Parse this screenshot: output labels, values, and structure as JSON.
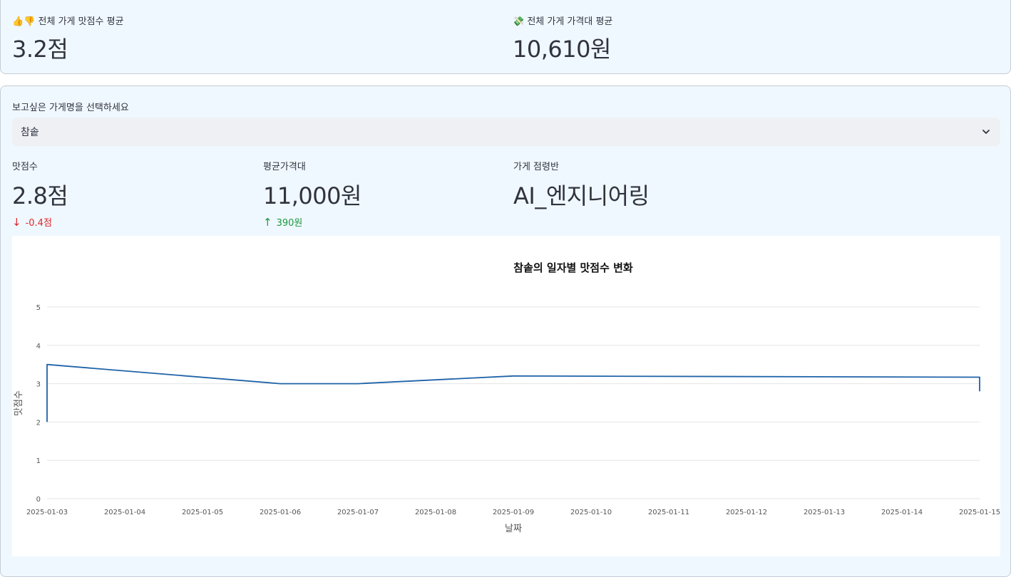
{
  "summary": {
    "avg_taste": {
      "icon": "👍👎",
      "label": "전체 가게 맛점수 평균",
      "value": "3.2점"
    },
    "avg_price": {
      "icon": "💸",
      "label": "전체 가게 가격대 평균",
      "value": "10,610원"
    }
  },
  "selector": {
    "label": "보고싶은 가게명을 선택하세요",
    "selected": "참솥"
  },
  "store_metrics": {
    "taste": {
      "label": "맛점수",
      "value": "2.8점",
      "delta": "-0.4점",
      "direction": "down"
    },
    "price": {
      "label": "평균가격대",
      "value": "11,000원",
      "delta": "390원",
      "direction": "up"
    },
    "owner": {
      "label": "가게 점령반",
      "value": "AI_엔지니어링"
    }
  },
  "colors": {
    "line": "#1f63a8",
    "delta_down": "#e0242c",
    "delta_up": "#1b9740",
    "panel_bg": "#f0f8ff"
  },
  "chart_data": {
    "type": "line",
    "title": "참솥의 일자별 맛점수 변화",
    "xlabel": "날짜",
    "ylabel": "맛점수",
    "ylim": [
      0,
      5
    ],
    "yticks": [
      "0",
      "1",
      "2",
      "3",
      "4",
      "5"
    ],
    "x": [
      "2025-01-03",
      "2025-01-04",
      "2025-01-05",
      "2025-01-06",
      "2025-01-07",
      "2025-01-08",
      "2025-01-09",
      "2025-01-10",
      "2025-01-11",
      "2025-01-12",
      "2025-01-13",
      "2025-01-14",
      "2025-01-15"
    ],
    "series": [
      {
        "points": [
          {
            "x": "2025-01-03",
            "y": 2.0
          },
          {
            "x": "2025-01-03",
            "y": 3.5
          },
          {
            "x": "2025-01-06",
            "y": 3.0
          },
          {
            "x": "2025-01-07",
            "y": 3.0
          },
          {
            "x": "2025-01-09",
            "y": 3.2
          },
          {
            "x": "2025-01-15",
            "y": 3.17
          },
          {
            "x": "2025-01-15",
            "y": 2.8
          }
        ]
      }
    ],
    "grid": true
  }
}
